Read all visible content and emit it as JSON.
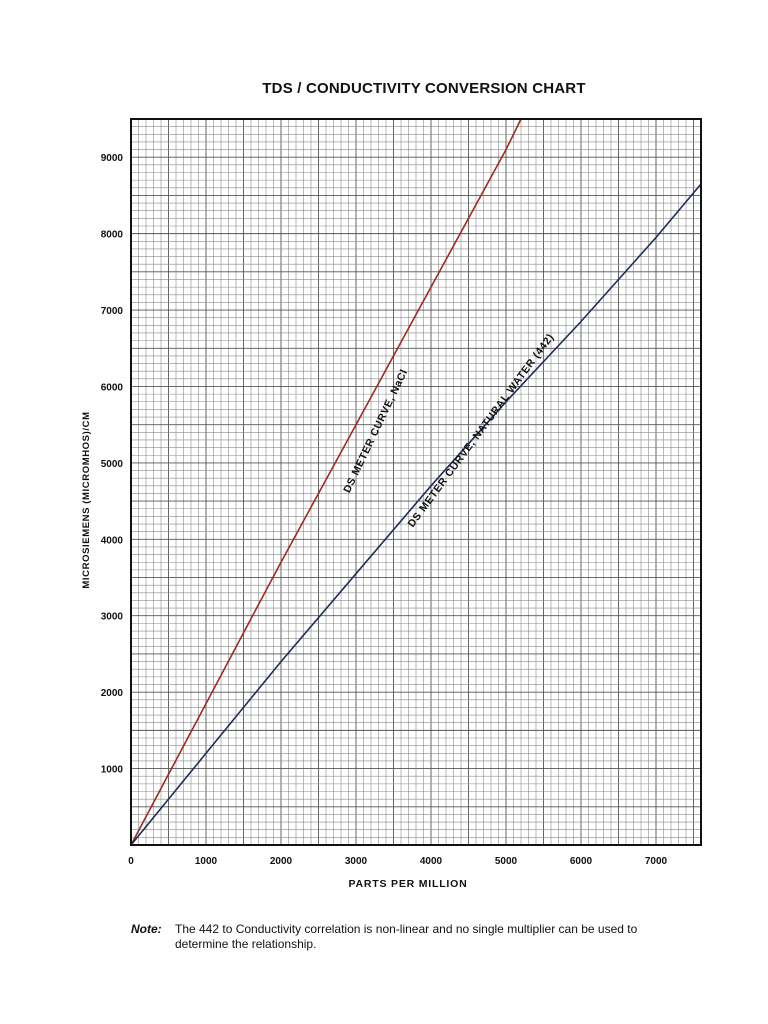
{
  "chart_data": {
    "type": "line",
    "title": "TDS / CONDUCTIVITY CONVERSION CHART",
    "xlabel": "PARTS PER MILLION",
    "ylabel": "MICROSIEMENS (MICROMHOS)/CM",
    "xlim": [
      0,
      7600
    ],
    "ylim": [
      0,
      9500
    ],
    "xticks": [
      0,
      1000,
      2000,
      3000,
      4000,
      5000,
      6000,
      7000
    ],
    "xtick_labels": [
      "0",
      "1000",
      "2000",
      "3000",
      "4000",
      "5000",
      "6000",
      "7000"
    ],
    "yticks": [
      1000,
      2000,
      3000,
      4000,
      5000,
      6000,
      7000,
      8000,
      9000
    ],
    "ytick_labels": [
      "1000",
      "2000",
      "3000",
      "4000",
      "5000",
      "6000",
      "7000",
      "8000",
      "9000"
    ],
    "grid": true,
    "series": [
      {
        "name": "DS METER CURVE, NaCl",
        "color": "#9e2a22",
        "x": [
          0,
          1000,
          2000,
          3000,
          4000,
          5000,
          5200
        ],
        "y": [
          0,
          1850,
          3700,
          5500,
          7300,
          9100,
          9500
        ]
      },
      {
        "name": "DS METER CURVE, NATURAL WATER (442)",
        "color": "#1c2f57",
        "x": [
          0,
          1000,
          2000,
          3000,
          4000,
          5000,
          6000,
          7000,
          7600
        ],
        "y": [
          0,
          1200,
          2400,
          3550,
          4700,
          5800,
          6850,
          7950,
          8650
        ]
      }
    ]
  },
  "note": {
    "label": "Note:",
    "text": "The 442 to Conductivity correlation is non-linear and no single multiplier can be used to determine the relationship."
  }
}
